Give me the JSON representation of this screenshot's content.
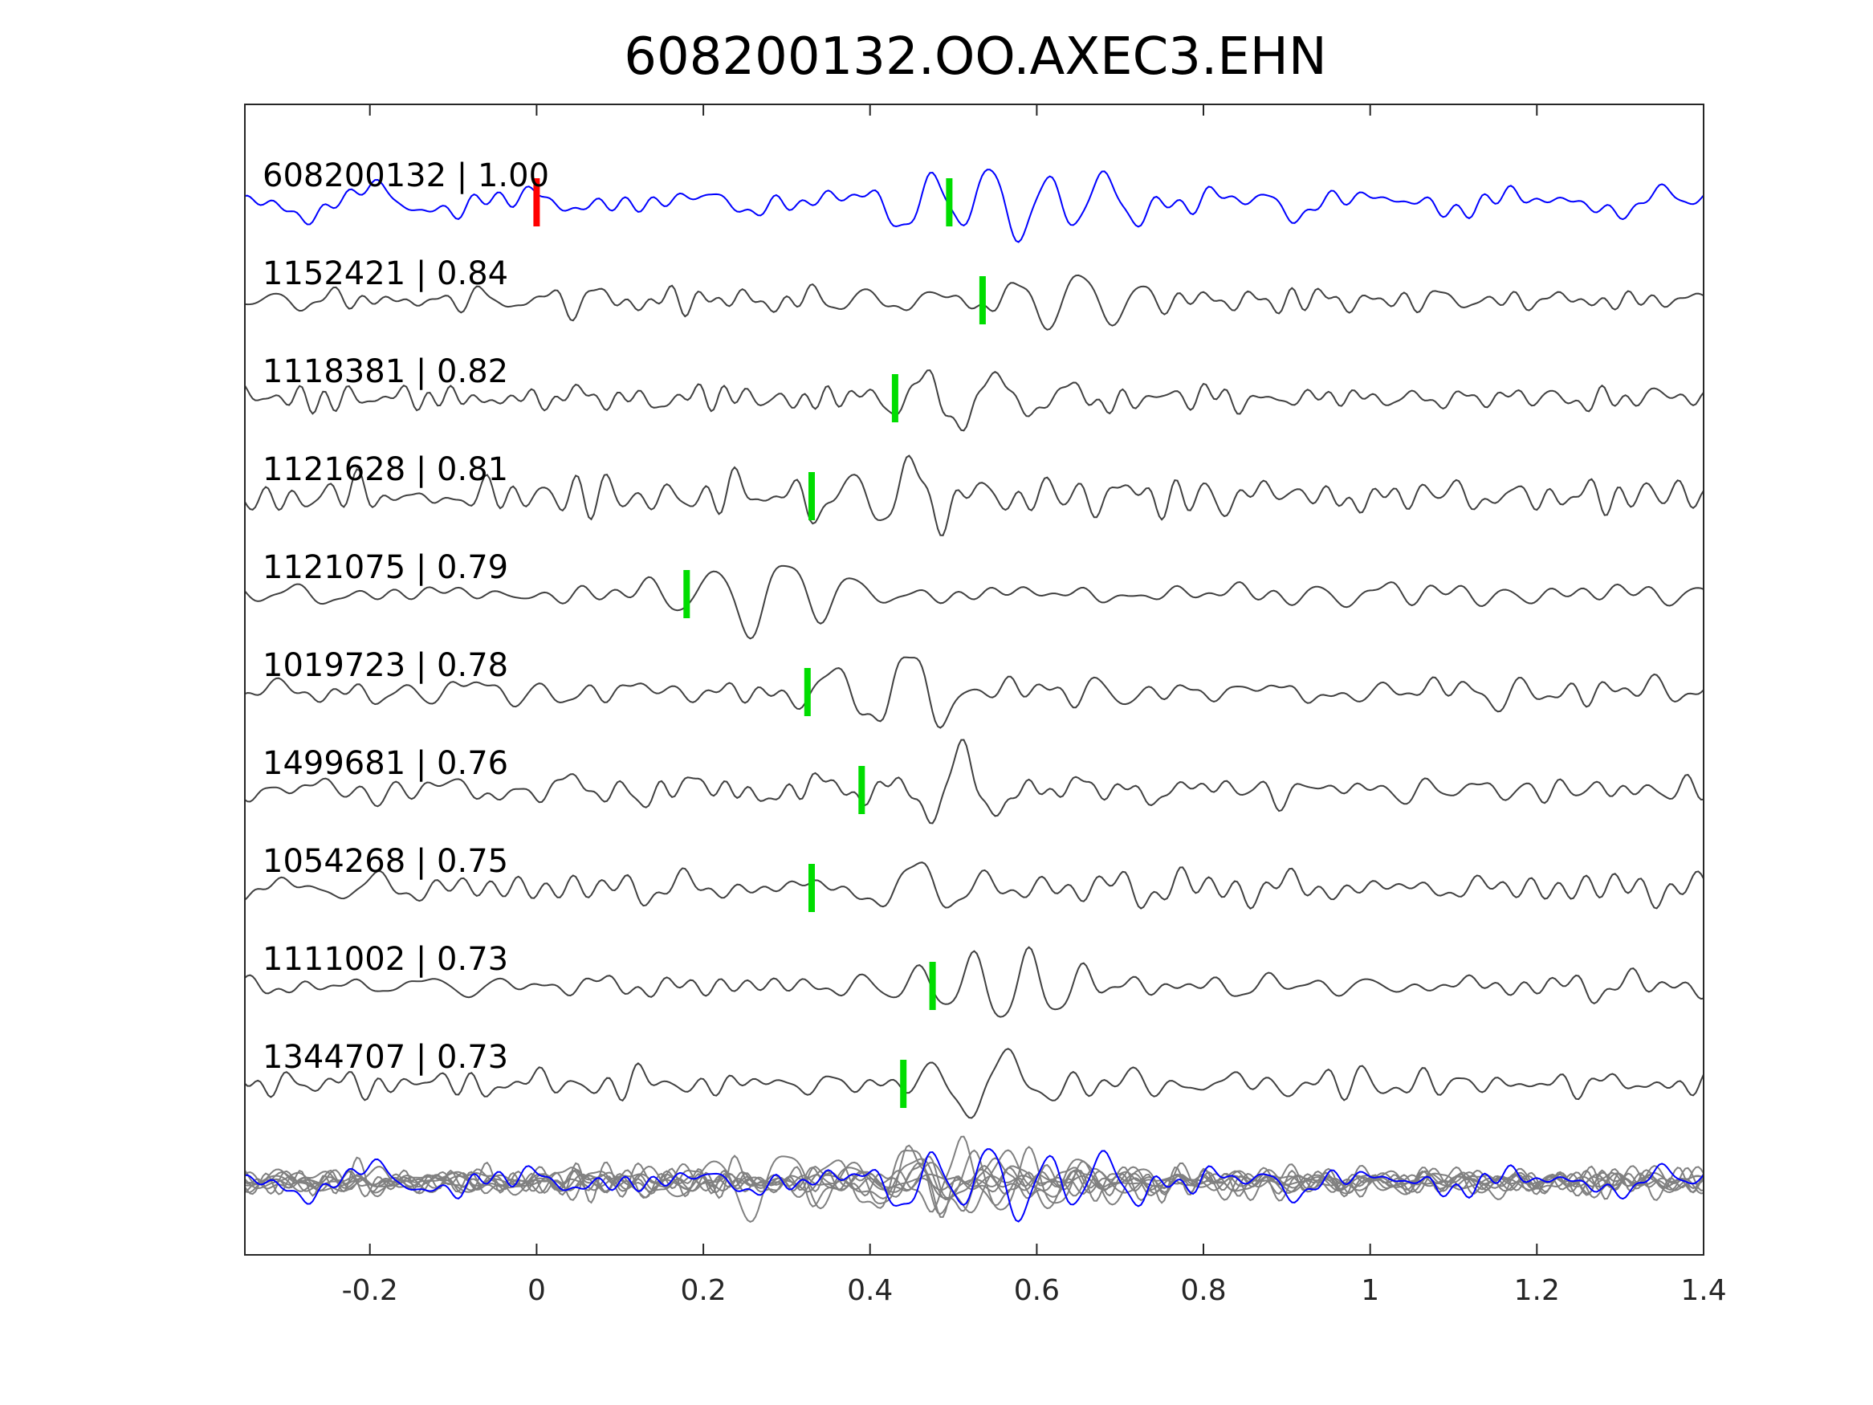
{
  "chart_data": {
    "type": "line",
    "title": "608200132.OO.AXEC3.EHN",
    "xlabel": "",
    "ylabel": "",
    "xlim": [
      -0.35,
      1.4
    ],
    "xticks": [
      -0.2,
      0,
      0.2,
      0.4,
      0.6,
      0.8,
      1,
      1.2,
      1.4
    ],
    "xtick_labels": [
      "-0.2",
      "0",
      "0.2",
      "0.4",
      "0.6",
      "0.8",
      "1",
      "1.2",
      "1.4"
    ],
    "grid": false,
    "legend": "none",
    "colors": {
      "template": "#0000ff",
      "trace": "#404040",
      "stack": "#808080",
      "pick_reference": "#ff0000",
      "pick": "#00dd00",
      "axis": "#262626"
    },
    "reference_pick": 0.0,
    "template": {
      "name": "608200132 | 1.00",
      "label": "608200132 | 1.00",
      "pick": 0.495,
      "amplitude": 1.0,
      "seed": 11
    },
    "series": [
      {
        "name": "1152421 | 0.84",
        "label": "1152421 | 0.84",
        "pick": 0.535,
        "amplitude": 0.85,
        "seed": 23
      },
      {
        "name": "1118381 | 0.82",
        "label": "1118381 | 0.82",
        "pick": 0.43,
        "amplitude": 1.0,
        "seed": 37
      },
      {
        "name": "1121628 | 0.81",
        "label": "1121628 | 0.81",
        "pick": 0.33,
        "amplitude": 1.1,
        "seed": 41
      },
      {
        "name": "1121075 | 0.79",
        "label": "1121075 | 0.79",
        "pick": 0.18,
        "amplitude": 1.0,
        "seed": 53
      },
      {
        "name": "1019723 | 0.78",
        "label": "1019723 | 0.78",
        "pick": 0.325,
        "amplitude": 1.0,
        "seed": 67
      },
      {
        "name": "1499681 | 0.76",
        "label": "1499681 | 0.76",
        "pick": 0.39,
        "amplitude": 1.0,
        "seed": 71
      },
      {
        "name": "1054268 | 0.75",
        "label": "1054268 | 0.75",
        "pick": 0.33,
        "amplitude": 1.0,
        "seed": 83
      },
      {
        "name": "1111002 | 0.73",
        "label": "1111002 | 0.73",
        "pick": 0.475,
        "amplitude": 1.0,
        "seed": 97
      },
      {
        "name": "1344707 | 0.73",
        "label": "1344707 | 0.73",
        "pick": 0.44,
        "amplitude": 1.0,
        "seed": 101
      }
    ]
  }
}
